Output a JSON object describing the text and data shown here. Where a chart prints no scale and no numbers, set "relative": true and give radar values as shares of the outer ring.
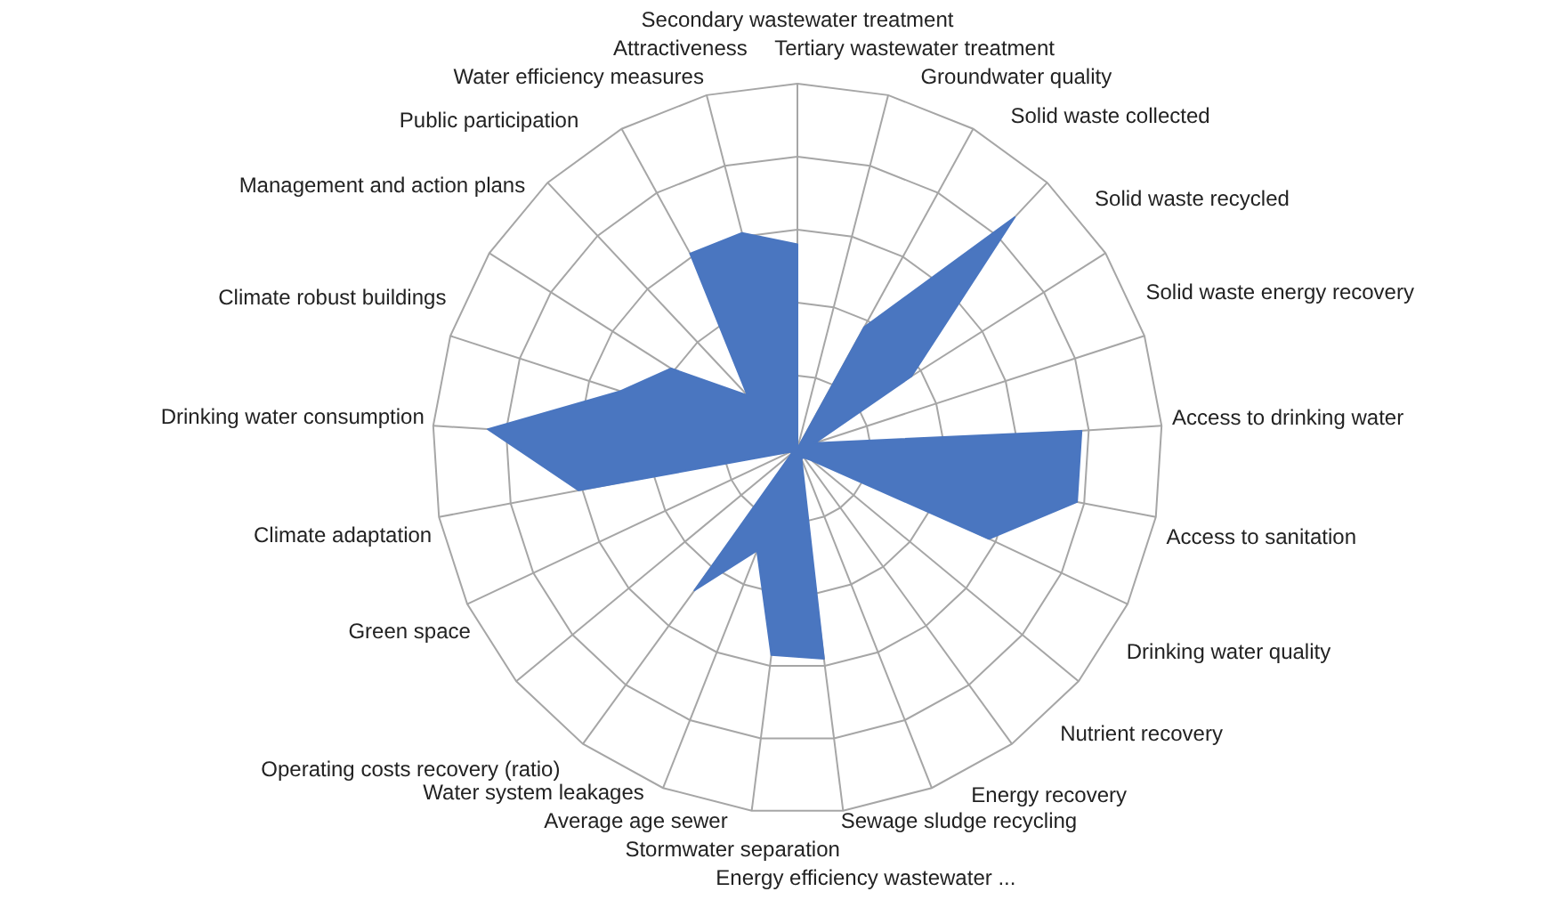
{
  "chart_data": {
    "type": "radar",
    "relative": true,
    "grid": true,
    "categories": [
      "Secondary wastewater  treatment",
      "Tertiary wastewater  treatment",
      "Groundwater quality",
      "Solid waste  collected",
      "Solid waste  recycled",
      "Solid waste  energy recovery",
      "Access to drinking water",
      "Access to sanitation",
      "Drinking water quality",
      "Nutrient recovery",
      "Energy recovery",
      "Sewage sludge recycling",
      "Energy efficiency wastewater ...",
      "Stormwater  separation",
      "Average age sewer",
      "Water system leakages",
      "Operating costs recovery (ratio)",
      "Green space",
      "Climate adaptation",
      "Drinking water  consumption",
      "Climate robust buildings",
      "Management and action plans",
      "Public participation",
      "Water efficiency measures",
      "Attractiveness"
    ],
    "series": [
      {
        "color": "#4a76c0",
        "values": [
          0.56,
          0,
          0.38,
          0.87,
          0.37,
          0.05,
          0.78,
          0.78,
          0.58,
          0.05,
          0.03,
          0.03,
          0.58,
          0.57,
          0.3,
          0.48,
          0.02,
          0.02,
          0.61,
          0.85,
          0.51,
          0.41,
          0.2,
          0.61,
          0.61
        ]
      }
    ]
  }
}
